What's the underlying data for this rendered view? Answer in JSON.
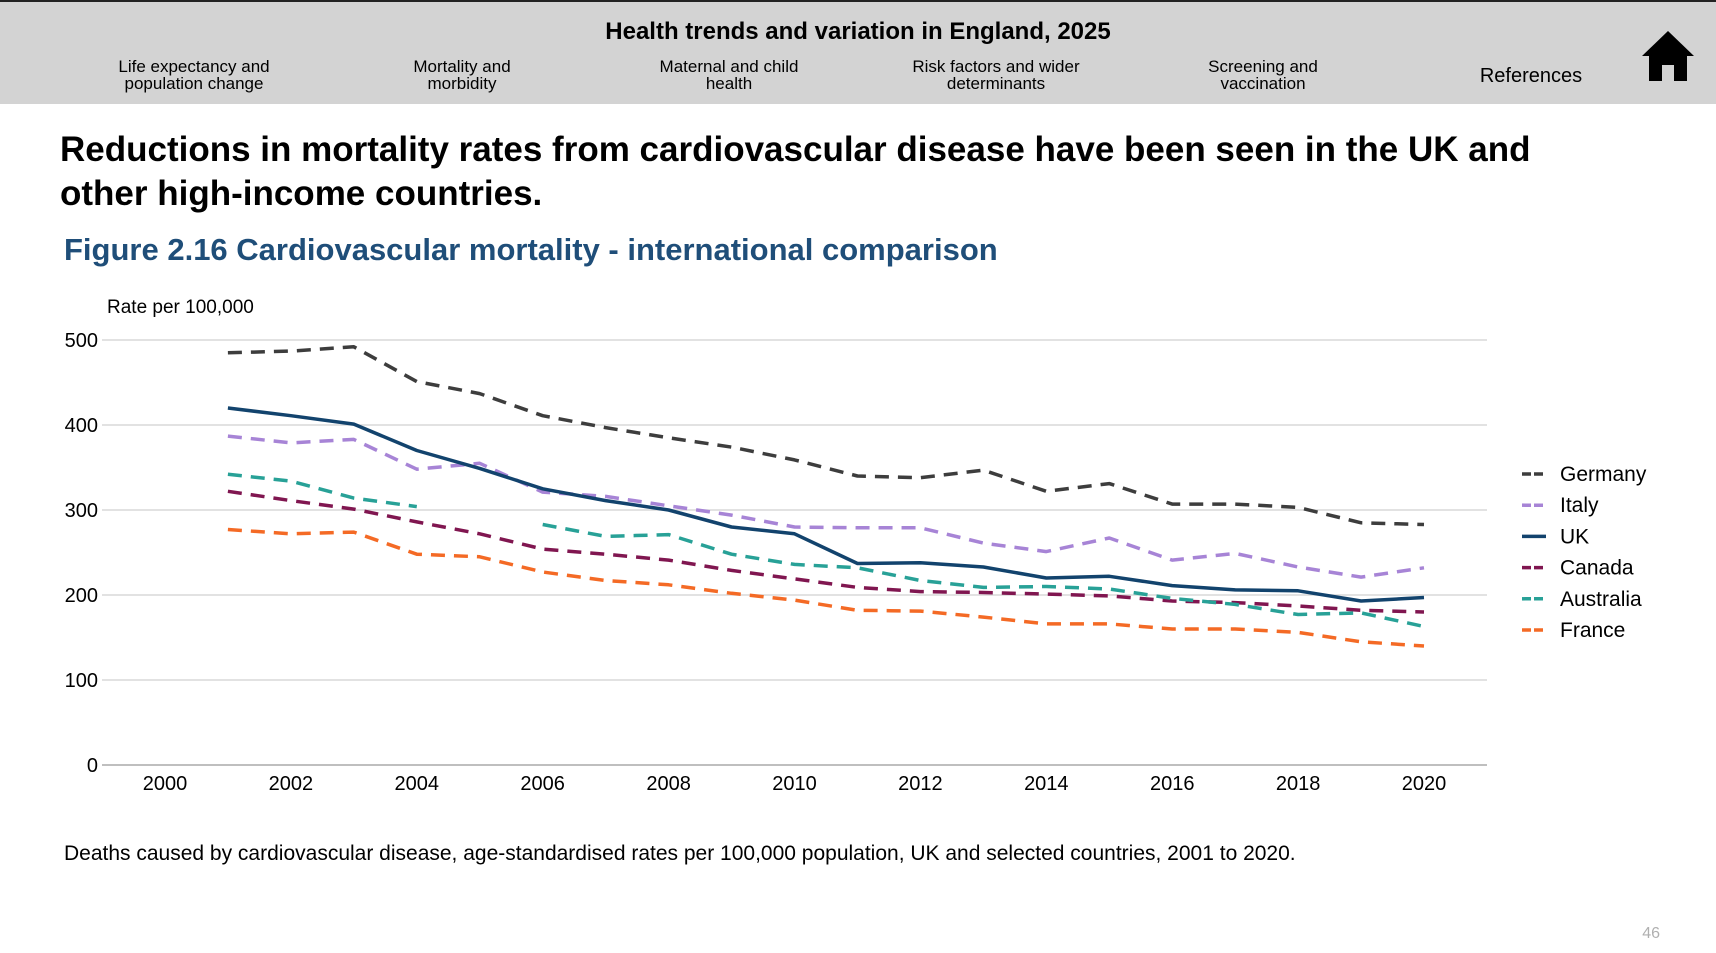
{
  "header": {
    "site_title": "Health trends and variation in England, 2025",
    "nav": [
      {
        "line1": "Life expectancy and",
        "line2": "population change"
      },
      {
        "line1": "Mortality and",
        "line2": "morbidity"
      },
      {
        "line1": "Maternal and child",
        "line2": "health"
      },
      {
        "line1": "Risk factors and wider",
        "line2": "determinants"
      },
      {
        "line1": "Screening and",
        "line2": "vaccination"
      },
      {
        "line1": "References",
        "line2": ""
      }
    ],
    "home_icon": "home-icon"
  },
  "headline": "Reductions in mortality rates from cardiovascular disease have been seen in the UK and other high-income countries.",
  "figure_title": "Figure 2.16 Cardiovascular mortality - international comparison",
  "caption": "Deaths caused by cardiovascular disease, age-standardised rates per 100,000 population, UK and selected countries, 2001 to 2020.",
  "page_number": "46",
  "chart_data": {
    "type": "line",
    "title": "Figure 2.16 Cardiovascular mortality - international comparison",
    "ylabel": "Rate per 100,000",
    "xlabel": "",
    "xlim": [
      1999,
      2021
    ],
    "ylim": [
      0,
      500
    ],
    "x_ticks": [
      2000,
      2002,
      2004,
      2006,
      2008,
      2010,
      2012,
      2014,
      2016,
      2018,
      2020
    ],
    "y_ticks": [
      0,
      100,
      200,
      300,
      400,
      500
    ],
    "grid": true,
    "legend": "right",
    "x": [
      2001,
      2002,
      2003,
      2004,
      2005,
      2006,
      2007,
      2008,
      2009,
      2010,
      2011,
      2012,
      2013,
      2014,
      2015,
      2016,
      2017,
      2018,
      2019,
      2020
    ],
    "series": [
      {
        "name": "Germany",
        "color": "#3d3d3d",
        "dash": true,
        "values": [
          485,
          487,
          492,
          451,
          437,
          411,
          397,
          385,
          374,
          359,
          340,
          338,
          347,
          322,
          331,
          307,
          307,
          303,
          285,
          283
        ]
      },
      {
        "name": "Italy",
        "color": "#a784d6",
        "dash": true,
        "values": [
          387,
          379,
          383,
          348,
          355,
          321,
          316,
          305,
          294,
          280,
          279,
          279,
          261,
          251,
          267,
          241,
          249,
          233,
          221,
          232
        ]
      },
      {
        "name": "UK",
        "color": "#12436d",
        "dash": false,
        "values": [
          420,
          411,
          401,
          370,
          349,
          325,
          311,
          300,
          280,
          272,
          237,
          238,
          233,
          220,
          222,
          211,
          206,
          205,
          193,
          197
        ]
      },
      {
        "name": "Canada",
        "color": "#801650",
        "dash": true,
        "values": [
          322,
          311,
          301,
          286,
          272,
          254,
          248,
          241,
          229,
          219,
          209,
          204,
          203,
          201,
          199,
          193,
          191,
          187,
          182,
          180
        ]
      },
      {
        "name": "Australia",
        "color": "#28a197",
        "dash": true,
        "values": [
          342,
          334,
          314,
          304,
          null,
          283,
          269,
          271,
          248,
          236,
          232,
          217,
          209,
          210,
          207,
          196,
          189,
          177,
          179,
          163
        ]
      },
      {
        "name": "France",
        "color": "#f46a25",
        "dash": true,
        "values": [
          277,
          272,
          274,
          248,
          245,
          227,
          217,
          212,
          202,
          194,
          182,
          181,
          174,
          166,
          166,
          160,
          160,
          156,
          145,
          140
        ]
      }
    ]
  }
}
